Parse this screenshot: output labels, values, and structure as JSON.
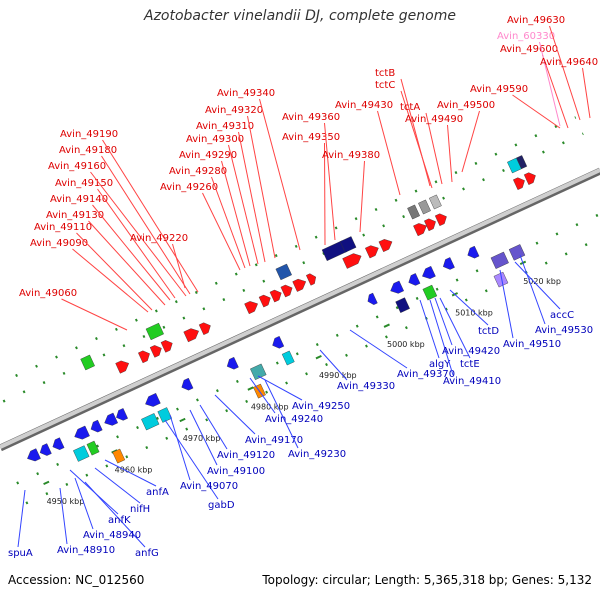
{
  "title": "Azotobacter vinelandii DJ, complete genome",
  "footer": {
    "accession": "Accession: NC_012560",
    "summary": "Topology: circular; Length: 5,365,318 bp; Genes: 5,132"
  },
  "colors": {
    "forward_label": "#dd0000",
    "reverse_label": "#0000bb",
    "highlight_label": "#ff88cc",
    "backbone": "#999999",
    "leader": "#ff4444",
    "leader_rev": "#3344ff"
  },
  "ticks": [
    {
      "label": "4950 kbp"
    },
    {
      "label": "4960 kbp"
    },
    {
      "label": "4970 kbp"
    },
    {
      "label": "4980 kbp"
    },
    {
      "label": "4990 kbp"
    },
    {
      "label": "5000 kbp"
    },
    {
      "label": "5010 kbp"
    },
    {
      "label": "5020 kbp"
    }
  ],
  "forward_labels": [
    "Avin_49060",
    "Avin_49090",
    "Avin_49110",
    "Avin_49130",
    "Avin_49140",
    "Avin_49150",
    "Avin_49160",
    "Avin_49180",
    "Avin_49190",
    "Avin_49220",
    "Avin_49260",
    "Avin_49280",
    "Avin_49290",
    "Avin_49300",
    "Avin_49310",
    "Avin_49320",
    "Avin_49340",
    "Avin_49350",
    "Avin_49360",
    "Avin_49380",
    "Avin_49430",
    "tctC",
    "tctB",
    "tctA",
    "Avin_49490",
    "Avin_49500",
    "Avin_49590",
    "Avin_49600",
    "Avin_60330",
    "Avin_49630",
    "Avin_49640"
  ],
  "reverse_labels": [
    "spuA",
    "Avin_48910",
    "anfG",
    "Avin_48940",
    "anfK",
    "nifH",
    "anfA",
    "gabD",
    "Avin_49070",
    "Avin_49100",
    "Avin_49120",
    "Avin_49170",
    "Avin_49230",
    "Avin_49240",
    "Avin_49250",
    "Avin_49330",
    "Avin_49370",
    "algY",
    "Avin_49410",
    "tctE",
    "Avin_49420",
    "tctD",
    "Avin_49510",
    "Avin_49530",
    "accC"
  ]
}
